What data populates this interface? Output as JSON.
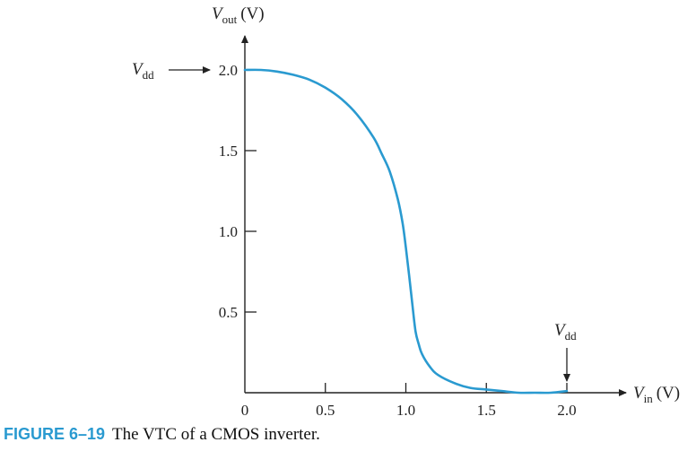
{
  "chart_data": {
    "type": "line",
    "title": "",
    "xlabel": {
      "main": "V",
      "sub": "in",
      "unit": "(V)"
    },
    "ylabel": {
      "main": "V",
      "sub": "out",
      "unit": "(V)"
    },
    "xlim": [
      0,
      2.1
    ],
    "ylim": [
      0,
      2.05
    ],
    "x_ticks": [
      0,
      0.5,
      1.0,
      1.5,
      2.0
    ],
    "x_tick_labels": [
      "0",
      "0.5",
      "1.0",
      "1.5",
      "2.0"
    ],
    "y_ticks": [
      0.5,
      1.0,
      1.5,
      2.0
    ],
    "y_tick_labels": [
      "0.5",
      "1.0",
      "1.5",
      "2.0"
    ],
    "grid": false,
    "series": [
      {
        "color": "#2a9ad0",
        "x": [
          0,
          0.1,
          0.2,
          0.3,
          0.4,
          0.5,
          0.6,
          0.7,
          0.8,
          0.85,
          0.9,
          0.95,
          0.98,
          1.0,
          1.02,
          1.04,
          1.06,
          1.08,
          1.1,
          1.15,
          1.2,
          1.3,
          1.4,
          1.5,
          1.6,
          1.7,
          1.8,
          1.9,
          2.0
        ],
        "y": [
          2.0,
          2.0,
          1.99,
          1.97,
          1.94,
          1.89,
          1.82,
          1.72,
          1.58,
          1.48,
          1.37,
          1.2,
          1.05,
          0.9,
          0.73,
          0.55,
          0.38,
          0.3,
          0.24,
          0.16,
          0.11,
          0.06,
          0.03,
          0.02,
          0.01,
          0.0,
          0.0,
          0.0,
          0.01
        ]
      }
    ],
    "annotations": [
      {
        "main": "V",
        "sub": "dd",
        "points_to": "y=2.0"
      },
      {
        "main": "V",
        "sub": "dd",
        "points_to": "x=2.0"
      }
    ]
  },
  "caption": {
    "label": "FIGURE 6–19",
    "text": "The VTC of a CMOS inverter."
  }
}
